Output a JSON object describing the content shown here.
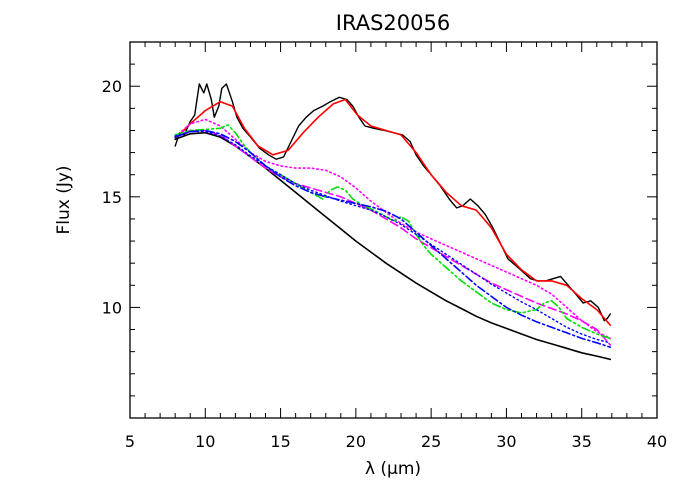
{
  "chart_data": {
    "type": "line",
    "title": "IRAS20056",
    "xlabel": "λ (μm)",
    "ylabel": "Flux (Jy)",
    "xlim": [
      5,
      40
    ],
    "ylim": [
      5,
      22
    ],
    "xticks": [
      5,
      10,
      15,
      20,
      25,
      30,
      35,
      40
    ],
    "yticks": [
      10,
      15,
      20
    ],
    "x_minor_step": 1,
    "y_minor_step": 1,
    "grid": false,
    "legend": "none",
    "series": [
      {
        "color": "#000000",
        "style": "solid",
        "width": 1.4,
        "points": [
          [
            8,
            17.3
          ],
          [
            8.3,
            17.9
          ],
          [
            8.6,
            17.8
          ],
          [
            9,
            18.4
          ],
          [
            9.3,
            18.7
          ],
          [
            9.6,
            20.1
          ],
          [
            9.9,
            19.7
          ],
          [
            10.1,
            20.1
          ],
          [
            10.4,
            19.4
          ],
          [
            10.6,
            18.6
          ],
          [
            10.9,
            19.1
          ],
          [
            11.1,
            19.9
          ],
          [
            11.4,
            20.1
          ],
          [
            11.8,
            19.3
          ],
          [
            12.1,
            18.6
          ],
          [
            12.5,
            18.1
          ],
          [
            13,
            17.7
          ],
          [
            13.6,
            17.2
          ],
          [
            14.2,
            16.9
          ],
          [
            14.7,
            16.7
          ],
          [
            15.2,
            16.8
          ],
          [
            15.7,
            17.5
          ],
          [
            16.2,
            18.2
          ],
          [
            16.7,
            18.6
          ],
          [
            17.2,
            18.9
          ],
          [
            17.8,
            19.1
          ],
          [
            18.3,
            19.3
          ],
          [
            18.9,
            19.5
          ],
          [
            19.4,
            19.4
          ],
          [
            19.8,
            19.1
          ],
          [
            20.2,
            18.6
          ],
          [
            20.6,
            18.2
          ],
          [
            21.2,
            18.1
          ],
          [
            21.9,
            18.0
          ],
          [
            22.5,
            17.9
          ],
          [
            23.1,
            17.8
          ],
          [
            23.6,
            17.5
          ],
          [
            24.0,
            16.9
          ],
          [
            24.5,
            16.4
          ],
          [
            25.0,
            16.0
          ],
          [
            25.6,
            15.5
          ],
          [
            26.2,
            14.9
          ],
          [
            26.7,
            14.5
          ],
          [
            27.1,
            14.6
          ],
          [
            27.6,
            14.9
          ],
          [
            28.1,
            14.6
          ],
          [
            28.6,
            14.2
          ],
          [
            29.1,
            13.6
          ],
          [
            29.6,
            12.9
          ],
          [
            30.1,
            12.2
          ],
          [
            30.6,
            11.9
          ],
          [
            31.1,
            11.6
          ],
          [
            31.6,
            11.3
          ],
          [
            32.1,
            11.2
          ],
          [
            32.6,
            11.2
          ],
          [
            33.1,
            11.3
          ],
          [
            33.6,
            11.4
          ],
          [
            34.1,
            11.0
          ],
          [
            34.6,
            10.6
          ],
          [
            35.1,
            10.2
          ],
          [
            35.6,
            10.3
          ],
          [
            36.1,
            10.0
          ],
          [
            36.5,
            9.4
          ],
          [
            36.7,
            9.5
          ],
          [
            36.9,
            9.7
          ]
        ]
      },
      {
        "color": "#ff0000",
        "style": "solid",
        "width": 1.6,
        "points": [
          [
            8,
            17.6
          ],
          [
            9,
            18.3
          ],
          [
            10,
            18.9
          ],
          [
            11,
            19.3
          ],
          [
            11.8,
            19.1
          ],
          [
            12.6,
            18.1
          ],
          [
            13.5,
            17.3
          ],
          [
            14.5,
            16.9
          ],
          [
            15.5,
            17.1
          ],
          [
            16.5,
            17.9
          ],
          [
            17.5,
            18.6
          ],
          [
            18.5,
            19.2
          ],
          [
            19.3,
            19.4
          ],
          [
            20.1,
            18.7
          ],
          [
            21,
            18.2
          ],
          [
            22,
            18.0
          ],
          [
            23,
            17.8
          ],
          [
            24,
            17.0
          ],
          [
            25,
            16.0
          ],
          [
            26,
            15.2
          ],
          [
            27,
            14.6
          ],
          [
            28,
            14.4
          ],
          [
            29,
            13.6
          ],
          [
            30,
            12.4
          ],
          [
            31,
            11.7
          ],
          [
            32,
            11.2
          ],
          [
            33,
            11.2
          ],
          [
            34,
            11.0
          ],
          [
            35,
            10.4
          ],
          [
            36,
            9.9
          ],
          [
            36.9,
            9.2
          ]
        ]
      },
      {
        "color": "#000000",
        "style": "solid",
        "width": 1.6,
        "points": [
          [
            8,
            17.6
          ],
          [
            9,
            17.85
          ],
          [
            10,
            17.9
          ],
          [
            11,
            17.7
          ],
          [
            12,
            17.3
          ],
          [
            13,
            16.8
          ],
          [
            14,
            16.3
          ],
          [
            15,
            15.75
          ],
          [
            16,
            15.2
          ],
          [
            17,
            14.65
          ],
          [
            18,
            14.1
          ],
          [
            19,
            13.55
          ],
          [
            20,
            13.0
          ],
          [
            21,
            12.5
          ],
          [
            22,
            12.0
          ],
          [
            23,
            11.55
          ],
          [
            24,
            11.1
          ],
          [
            25,
            10.7
          ],
          [
            26,
            10.3
          ],
          [
            27,
            9.95
          ],
          [
            28,
            9.6
          ],
          [
            29,
            9.3
          ],
          [
            30,
            9.05
          ],
          [
            31,
            8.8
          ],
          [
            32,
            8.55
          ],
          [
            33,
            8.35
          ],
          [
            34,
            8.15
          ],
          [
            35,
            7.95
          ],
          [
            36,
            7.8
          ],
          [
            36.9,
            7.65
          ]
        ]
      },
      {
        "color": "#ff00ff",
        "style": "dotted",
        "width": 1.6,
        "points": [
          [
            8,
            17.7
          ],
          [
            9,
            18.3
          ],
          [
            10,
            18.5
          ],
          [
            11,
            18.2
          ],
          [
            12,
            17.6
          ],
          [
            13,
            17.0
          ],
          [
            14,
            16.6
          ],
          [
            15,
            16.4
          ],
          [
            16,
            16.3
          ],
          [
            17,
            16.3
          ],
          [
            18,
            16.2
          ],
          [
            19,
            15.9
          ],
          [
            20,
            15.4
          ],
          [
            21,
            14.8
          ],
          [
            22,
            14.3
          ],
          [
            23,
            13.8
          ],
          [
            24,
            13.4
          ],
          [
            25,
            13.1
          ],
          [
            26,
            12.8
          ],
          [
            27,
            12.5
          ],
          [
            28,
            12.2
          ],
          [
            29,
            11.9
          ],
          [
            30,
            11.6
          ],
          [
            31,
            11.3
          ],
          [
            32,
            11.0
          ],
          [
            33,
            10.6
          ],
          [
            34,
            10.0
          ],
          [
            35,
            9.4
          ],
          [
            36,
            8.9
          ],
          [
            36.9,
            8.6
          ]
        ]
      },
      {
        "color": "#ff00ff",
        "style": "dashed",
        "width": 1.6,
        "points": [
          [
            8,
            17.7
          ],
          [
            9,
            18.0
          ],
          [
            10,
            18.0
          ],
          [
            11,
            17.8
          ],
          [
            12,
            17.3
          ],
          [
            13,
            16.8
          ],
          [
            14,
            16.3
          ],
          [
            15,
            15.9
          ],
          [
            16,
            15.6
          ],
          [
            17,
            15.4
          ],
          [
            18,
            15.2
          ],
          [
            19,
            15.0
          ],
          [
            20,
            14.7
          ],
          [
            21,
            14.4
          ],
          [
            22,
            14.0
          ],
          [
            23,
            13.6
          ],
          [
            24,
            13.1
          ],
          [
            25,
            12.7
          ],
          [
            26,
            12.3
          ],
          [
            27,
            11.9
          ],
          [
            28,
            11.5
          ],
          [
            29,
            11.1
          ],
          [
            30,
            10.8
          ],
          [
            31,
            10.5
          ],
          [
            32,
            10.2
          ],
          [
            33,
            9.95
          ],
          [
            34,
            9.7
          ],
          [
            35,
            9.4
          ],
          [
            36,
            9.0
          ],
          [
            36.9,
            8.3
          ]
        ]
      },
      {
        "color": "#00dd00",
        "style": "dashdotdot",
        "width": 1.6,
        "points": [
          [
            8,
            17.8
          ],
          [
            9,
            18.0
          ],
          [
            10,
            18.05
          ],
          [
            11,
            18.1
          ],
          [
            11.5,
            18.25
          ],
          [
            12,
            17.9
          ],
          [
            12.5,
            17.4
          ],
          [
            13,
            17.0
          ],
          [
            14,
            16.4
          ],
          [
            15,
            16.0
          ],
          [
            16,
            15.6
          ],
          [
            17,
            15.2
          ],
          [
            17.8,
            14.9
          ],
          [
            18.3,
            15.3
          ],
          [
            18.8,
            15.45
          ],
          [
            19.3,
            15.3
          ],
          [
            19.8,
            14.9
          ],
          [
            20.5,
            14.6
          ],
          [
            21.5,
            14.3
          ],
          [
            22.5,
            13.9
          ],
          [
            23,
            14.1
          ],
          [
            23.5,
            13.9
          ],
          [
            24,
            13.3
          ],
          [
            24.5,
            12.8
          ],
          [
            25,
            12.4
          ],
          [
            26,
            11.8
          ],
          [
            27,
            11.2
          ],
          [
            28,
            10.7
          ],
          [
            29,
            10.2
          ],
          [
            30,
            9.9
          ],
          [
            31,
            9.75
          ],
          [
            32,
            9.9
          ],
          [
            32.5,
            10.2
          ],
          [
            33,
            10.3
          ],
          [
            33.5,
            10.0
          ],
          [
            34,
            9.5
          ],
          [
            35,
            9.1
          ],
          [
            36,
            8.8
          ],
          [
            36.9,
            8.6
          ]
        ]
      },
      {
        "color": "#0000ff",
        "style": "dashdot",
        "width": 1.6,
        "points": [
          [
            8,
            17.7
          ],
          [
            9,
            17.95
          ],
          [
            10,
            18.0
          ],
          [
            11,
            17.85
          ],
          [
            12,
            17.5
          ],
          [
            13,
            17.0
          ],
          [
            14,
            16.4
          ],
          [
            15,
            15.9
          ],
          [
            16,
            15.5
          ],
          [
            17,
            15.2
          ],
          [
            18,
            15.0
          ],
          [
            19,
            14.85
          ],
          [
            20,
            14.7
          ],
          [
            21,
            14.55
          ],
          [
            22,
            14.35
          ],
          [
            23,
            14.0
          ],
          [
            24,
            13.4
          ],
          [
            25,
            12.8
          ],
          [
            26,
            12.2
          ],
          [
            27,
            11.6
          ],
          [
            28,
            11.0
          ],
          [
            29,
            10.5
          ],
          [
            30,
            10.0
          ],
          [
            31,
            9.65
          ],
          [
            32,
            9.35
          ],
          [
            33,
            9.1
          ],
          [
            34,
            8.85
          ],
          [
            35,
            8.6
          ],
          [
            36,
            8.4
          ],
          [
            36.9,
            8.2
          ]
        ]
      },
      {
        "color": "#0000ff",
        "style": "dotted",
        "width": 1.4,
        "points": [
          [
            8,
            17.75
          ],
          [
            9,
            17.95
          ],
          [
            10,
            17.95
          ],
          [
            11,
            17.75
          ],
          [
            12,
            17.35
          ],
          [
            13,
            16.85
          ],
          [
            14,
            16.4
          ],
          [
            15,
            16.0
          ],
          [
            16,
            15.6
          ],
          [
            17,
            15.3
          ],
          [
            18,
            15.05
          ],
          [
            19,
            14.8
          ],
          [
            20,
            14.6
          ],
          [
            21,
            14.4
          ],
          [
            22,
            14.1
          ],
          [
            23,
            13.75
          ],
          [
            24,
            13.3
          ],
          [
            25,
            12.85
          ],
          [
            26,
            12.4
          ],
          [
            27,
            11.95
          ],
          [
            28,
            11.5
          ],
          [
            29,
            11.05
          ],
          [
            30,
            10.65
          ],
          [
            31,
            10.25
          ],
          [
            32,
            9.9
          ],
          [
            33,
            9.5
          ],
          [
            34,
            9.1
          ],
          [
            35,
            8.8
          ],
          [
            36,
            8.55
          ],
          [
            36.9,
            8.4
          ]
        ]
      }
    ]
  }
}
